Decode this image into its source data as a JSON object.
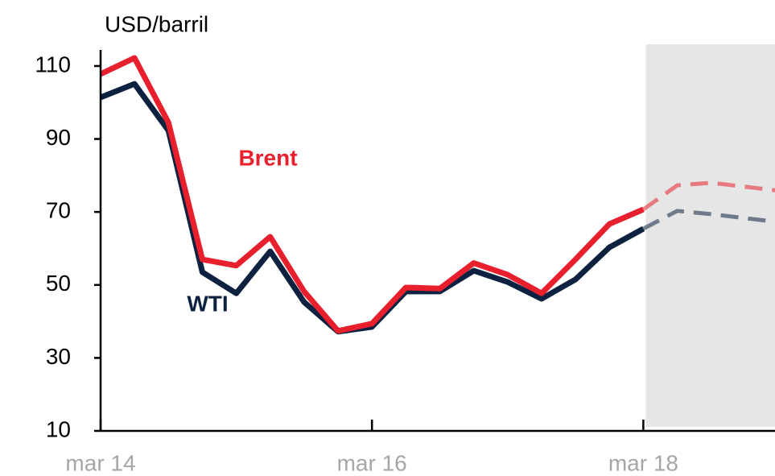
{
  "chart_data": {
    "type": "line",
    "y_label": "USD/barril",
    "categories": [
      "mar 14",
      null,
      null,
      null,
      null,
      null,
      null,
      null,
      "mar 16",
      null,
      null,
      null,
      null,
      null,
      null,
      null,
      "mar 18",
      null,
      null,
      null,
      null
    ],
    "series": [
      {
        "name": "Brent",
        "color": "#e8202e",
        "values": [
          107.8,
          112.2,
          94.5,
          57,
          55.3,
          63.2,
          48.2,
          37.4,
          39.4,
          49.3,
          49,
          56,
          52.8,
          47.7,
          57,
          66.7,
          70.7,
          77.3,
          78,
          76.9,
          75.8
        ]
      },
      {
        "name": "WTI",
        "color": "#0d2240",
        "values": [
          101.4,
          105.1,
          92.3,
          53.5,
          47.7,
          59.2,
          45.3,
          37.2,
          38.5,
          48.2,
          48.2,
          53.9,
          50.8,
          46.2,
          51.5,
          60.3,
          65.4,
          70.3,
          69.4,
          68.3,
          67.2
        ]
      }
    ],
    "forecast_from_index": 16,
    "ylim": [
      10,
      114.4
    ],
    "yticks": [
      10,
      30,
      50,
      70,
      90,
      110
    ]
  }
}
